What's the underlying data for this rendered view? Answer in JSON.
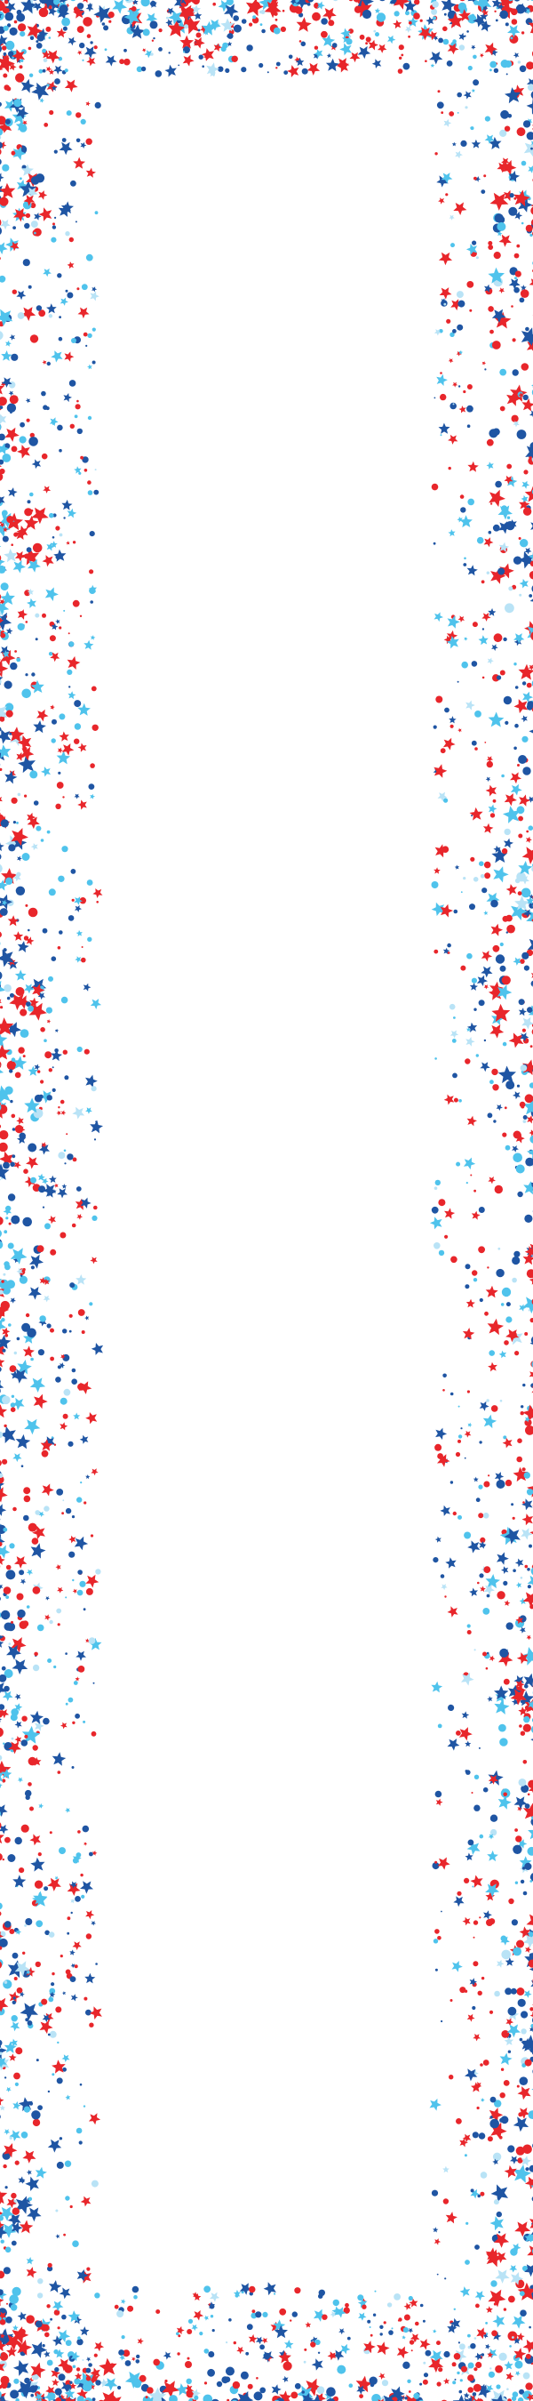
{
  "design": {
    "background_color": "#ffffff",
    "confetti_colors": [
      "#e8262b",
      "#1f55a3",
      "#4fc3ec",
      "#b9e3f6"
    ],
    "shapes": [
      "star",
      "dot"
    ]
  }
}
